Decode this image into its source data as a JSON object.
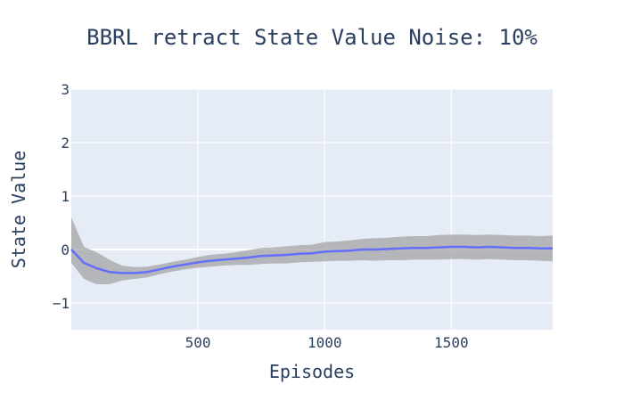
{
  "chart_data": {
    "type": "line",
    "title": "BBRL retract State Value Noise: 10%",
    "xlabel": "Episodes",
    "ylabel": "State Value",
    "xlim": [
      0,
      1900
    ],
    "ylim": [
      -1.5,
      3
    ],
    "x_ticks": [
      500,
      1000,
      1500
    ],
    "y_ticks": [
      3,
      2,
      1,
      0,
      -1
    ],
    "x_tick_labels": [
      "500",
      "1000",
      "1500"
    ],
    "y_tick_labels": [
      "3",
      "2",
      "1",
      "0",
      "−1"
    ],
    "grid": true,
    "legend": "none",
    "colors": {
      "plot_bg": "#e5ecf6",
      "grid": "#ffffff",
      "line": "#636efa",
      "band": "#a0a0a0"
    },
    "series": [
      {
        "x": [
          0,
          50,
          100,
          150,
          200,
          250,
          300,
          350,
          400,
          450,
          500,
          550,
          600,
          650,
          700,
          750,
          800,
          850,
          900,
          950,
          1000,
          1050,
          1100,
          1150,
          1200,
          1250,
          1300,
          1350,
          1400,
          1450,
          1500,
          1550,
          1600,
          1650,
          1700,
          1750,
          1800,
          1850,
          1900
        ],
        "y": [
          0.0,
          -0.25,
          -0.35,
          -0.42,
          -0.44,
          -0.44,
          -0.42,
          -0.37,
          -0.32,
          -0.28,
          -0.24,
          -0.21,
          -0.19,
          -0.17,
          -0.15,
          -0.12,
          -0.11,
          -0.1,
          -0.08,
          -0.07,
          -0.04,
          -0.03,
          -0.02,
          0.0,
          0.0,
          0.01,
          0.02,
          0.03,
          0.03,
          0.04,
          0.05,
          0.05,
          0.04,
          0.05,
          0.04,
          0.03,
          0.03,
          0.02,
          0.02
        ],
        "lower": [
          -0.25,
          -0.55,
          -0.65,
          -0.65,
          -0.58,
          -0.55,
          -0.52,
          -0.46,
          -0.41,
          -0.37,
          -0.34,
          -0.32,
          -0.3,
          -0.29,
          -0.29,
          -0.27,
          -0.26,
          -0.26,
          -0.24,
          -0.23,
          -0.22,
          -0.21,
          -0.21,
          -0.2,
          -0.21,
          -0.2,
          -0.2,
          -0.19,
          -0.19,
          -0.19,
          -0.18,
          -0.18,
          -0.19,
          -0.18,
          -0.19,
          -0.2,
          -0.2,
          -0.21,
          -0.22
        ],
        "upper": [
          0.6,
          0.05,
          -0.05,
          -0.19,
          -0.3,
          -0.33,
          -0.32,
          -0.28,
          -0.23,
          -0.19,
          -0.14,
          -0.1,
          -0.08,
          -0.05,
          -0.01,
          0.03,
          0.04,
          0.06,
          0.08,
          0.09,
          0.14,
          0.15,
          0.17,
          0.2,
          0.21,
          0.22,
          0.24,
          0.25,
          0.25,
          0.27,
          0.28,
          0.28,
          0.27,
          0.28,
          0.27,
          0.26,
          0.26,
          0.25,
          0.26
        ]
      }
    ]
  }
}
